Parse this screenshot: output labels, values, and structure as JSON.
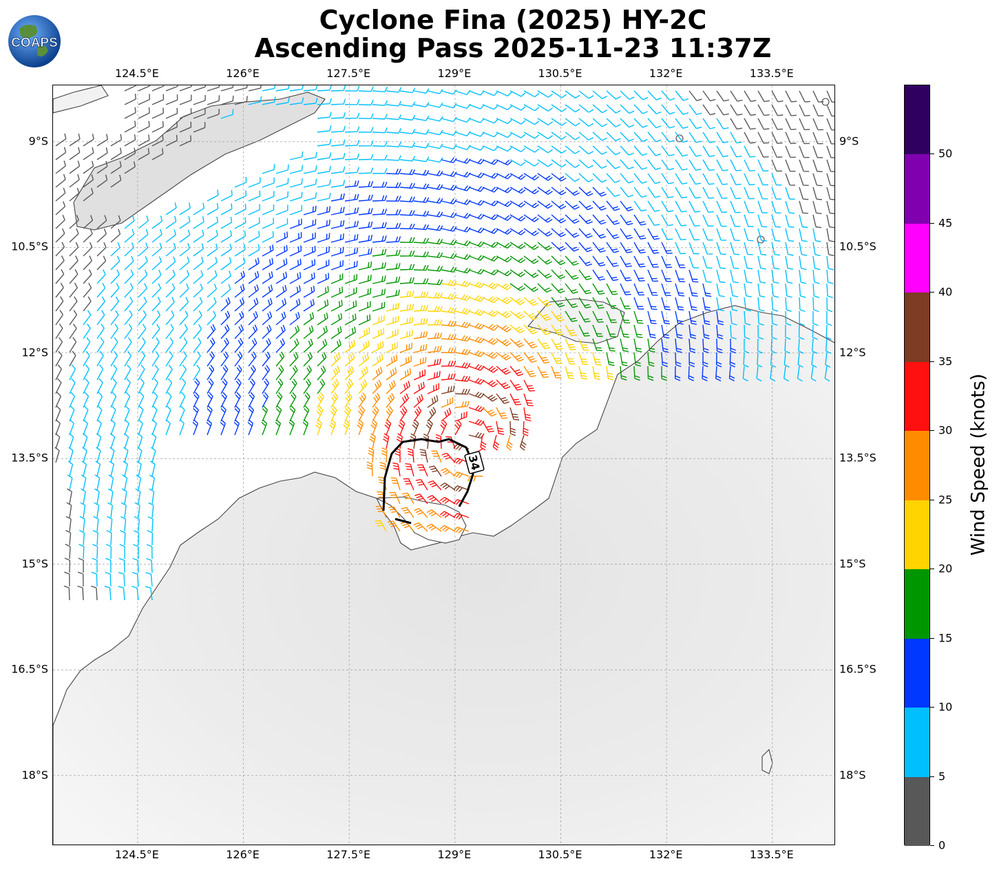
{
  "title": {
    "line1": "Cyclone Fina (2025) HY-2C",
    "line2": "Ascending Pass 2025-11-23 11:37Z"
  },
  "logo": {
    "text": "COAPS",
    "icon": "globe-logo-icon"
  },
  "map": {
    "lon_range": [
      123.3,
      134.4
    ],
    "lat_range": [
      -19.0,
      -8.2
    ],
    "lon_ticks": [
      "124.5°E",
      "126°E",
      "127.5°E",
      "129°E",
      "130.5°E",
      "132°E",
      "133.5°E"
    ],
    "lon_tick_values": [
      124.5,
      126,
      127.5,
      129,
      130.5,
      132,
      133.5
    ],
    "lat_ticks": [
      "9°S",
      "10.5°S",
      "12°S",
      "13.5°S",
      "15°S",
      "16.5°S",
      "18°S"
    ],
    "lat_tick_values": [
      -9,
      -10.5,
      -12,
      -13.5,
      -15,
      -16.5,
      -18
    ],
    "grid": true,
    "storm_center": {
      "lon": 129.2,
      "lat": -13.2
    },
    "wind_contour": {
      "label": "34",
      "units": "knots"
    }
  },
  "colorbar": {
    "title": "Wind Speed (knots)",
    "ticks": [
      "0",
      "5",
      "10",
      "15",
      "20",
      "25",
      "30",
      "35",
      "40",
      "45",
      "50"
    ],
    "range": [
      0,
      55
    ],
    "colors": [
      "#585858",
      "#00bfff",
      "#0038ff",
      "#009600",
      "#ffd400",
      "#ff8c00",
      "#ff1010",
      "#7d3c23",
      "#ff00ff",
      "#8000b0",
      "#300060"
    ]
  }
}
